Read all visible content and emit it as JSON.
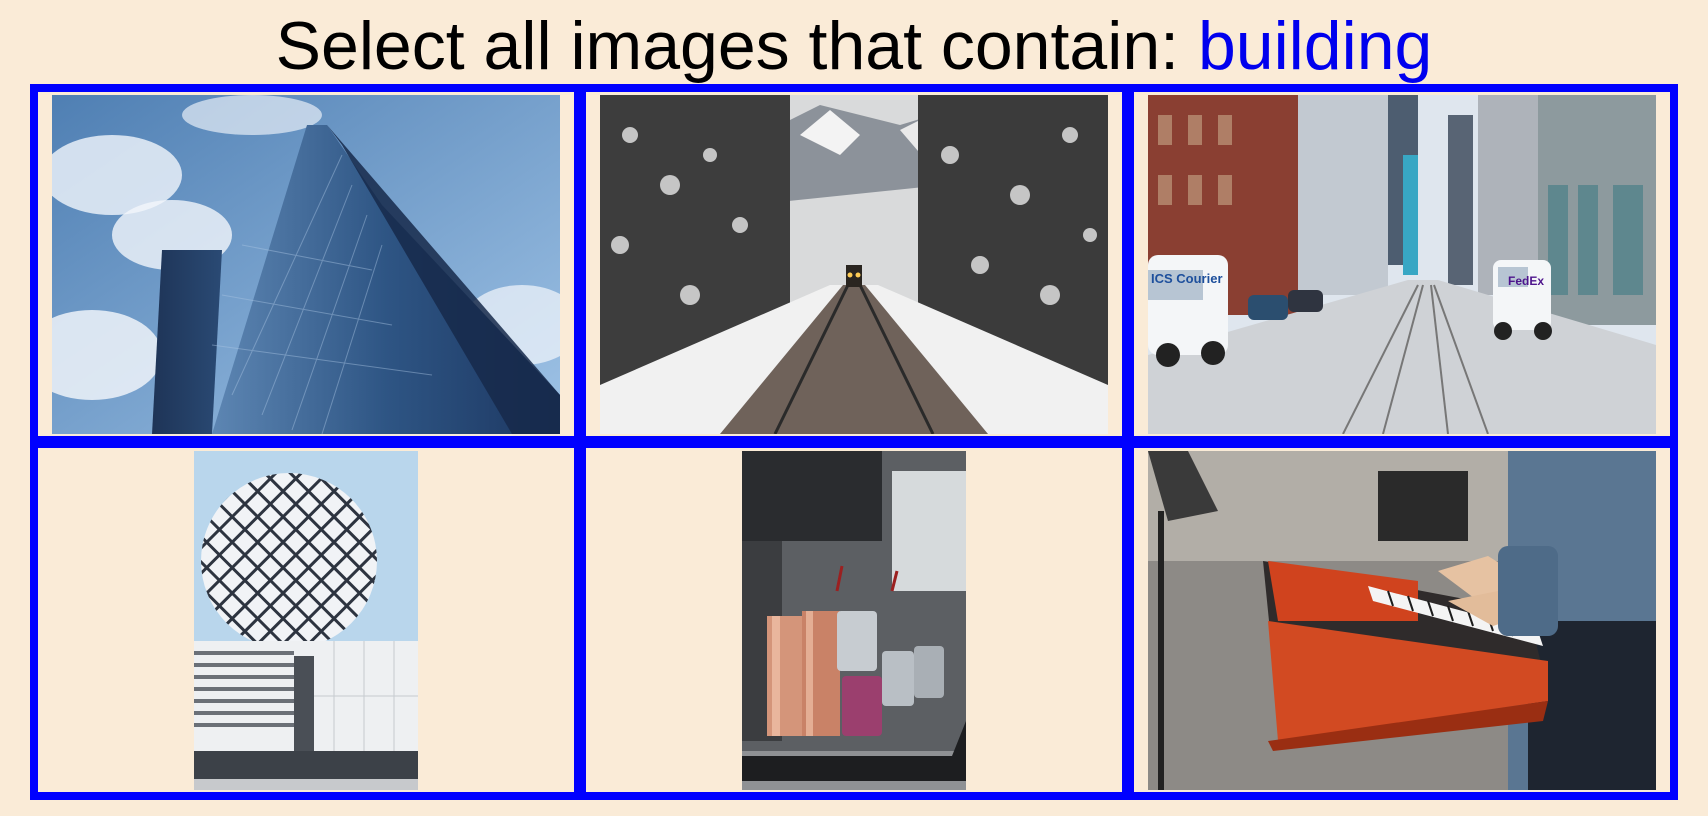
{
  "captcha": {
    "prompt": "Select all images that contain: ",
    "target": "building"
  },
  "tiles": [
    {
      "id": 1,
      "icon": "glass-skyscraper-photo",
      "selected": false
    },
    {
      "id": 2,
      "icon": "snowy-railway-train-photo",
      "selected": false
    },
    {
      "id": 3,
      "icon": "city-street-vans-photo",
      "selected": false
    },
    {
      "id": 4,
      "icon": "dome-building-photo",
      "selected": false
    },
    {
      "id": 5,
      "icon": "coffee-cups-photo",
      "selected": false
    },
    {
      "id": 6,
      "icon": "keyboard-player-photo",
      "selected": false
    }
  ],
  "van_left_label": "ICS Courier",
  "van_right_label": "FedEx"
}
